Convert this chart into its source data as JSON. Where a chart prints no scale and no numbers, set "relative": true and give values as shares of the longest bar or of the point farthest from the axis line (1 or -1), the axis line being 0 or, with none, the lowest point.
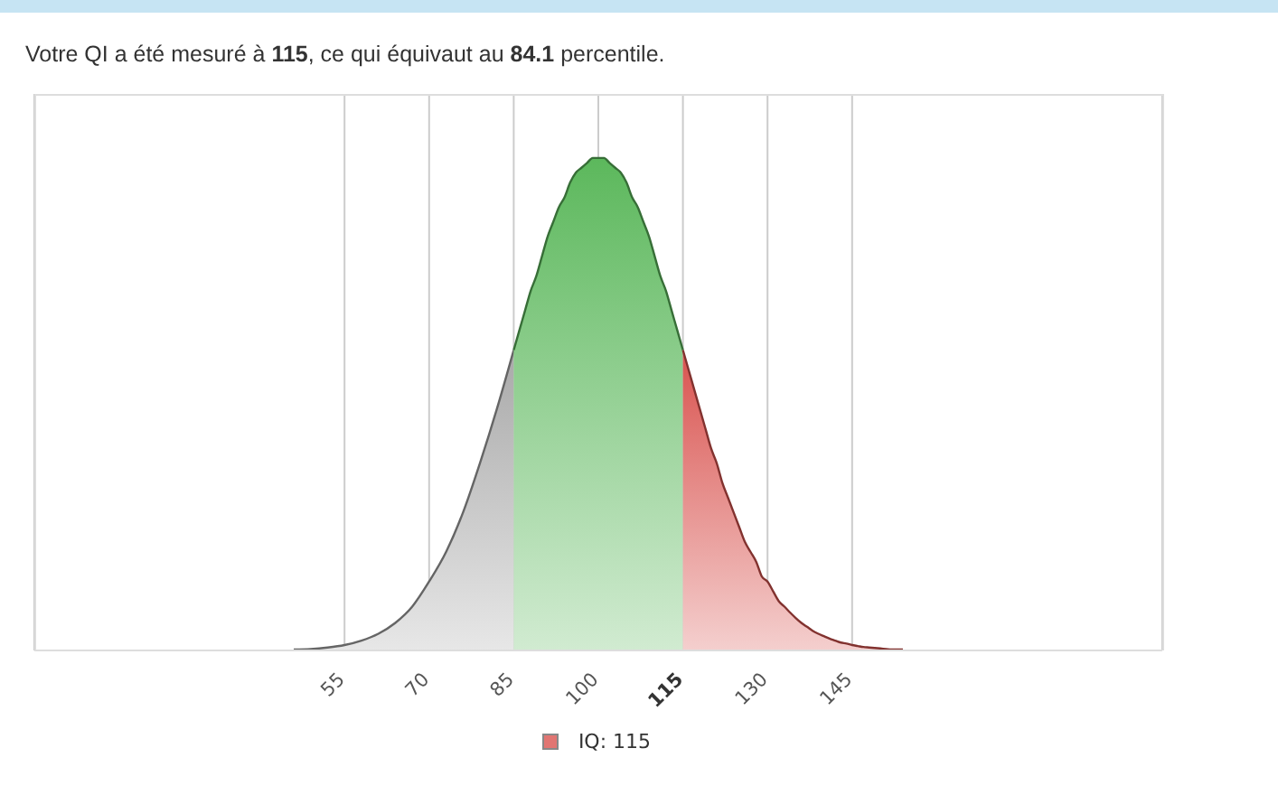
{
  "chart_data": {
    "type": "area",
    "title": "Votre QI a été mesuré à 115, ce qui équivaut au 84.1 percentile.",
    "relative": true,
    "xlim": [
      0,
      200
    ],
    "xticks": [
      55,
      70,
      85,
      100,
      115,
      130,
      145
    ],
    "tick_labels": "x",
    "grid": "x",
    "legend": "bottom",
    "series": [
      {
        "color": "#a9a9a9",
        "x": [
          46,
          49,
          52,
          55,
          58,
          61,
          64,
          67,
          70,
          73,
          76,
          79,
          82,
          85
        ],
        "values": [
          0.002,
          0.003,
          0.006,
          0.011,
          0.02,
          0.034,
          0.056,
          0.089,
          0.14,
          0.2,
          0.28,
          0.38,
          0.49,
          0.61
        ]
      },
      {
        "color": "#5cb85c",
        "x": [
          85,
          86,
          87,
          88,
          89,
          90,
          91,
          92,
          93,
          94,
          95,
          96,
          97,
          98,
          99,
          100,
          101,
          102,
          103,
          104,
          105,
          106,
          107,
          108,
          109,
          110,
          111,
          112,
          113,
          114,
          115
        ],
        "values": [
          0.61,
          0.65,
          0.69,
          0.73,
          0.76,
          0.8,
          0.84,
          0.87,
          0.9,
          0.92,
          0.95,
          0.97,
          0.98,
          0.99,
          1,
          1,
          1,
          0.99,
          0.98,
          0.97,
          0.95,
          0.92,
          0.9,
          0.87,
          0.84,
          0.8,
          0.76,
          0.73,
          0.69,
          0.65,
          0.61
        ]
      },
      {
        "name": "IQ: 115",
        "color": "#d9534f",
        "x": [
          115,
          116,
          117,
          118,
          119,
          120,
          121,
          122,
          123,
          124,
          125,
          126,
          127,
          128,
          129,
          130,
          131,
          132,
          133,
          134,
          135,
          136,
          137,
          138,
          139,
          140,
          141,
          142,
          143,
          144,
          145,
          146,
          147,
          148,
          149,
          150,
          151,
          152,
          153,
          154
        ],
        "values": [
          0.61,
          0.57,
          0.53,
          0.49,
          0.45,
          0.41,
          0.38,
          0.34,
          0.31,
          0.28,
          0.25,
          0.22,
          0.2,
          0.18,
          0.15,
          0.14,
          0.12,
          0.1,
          0.089,
          0.077,
          0.066,
          0.056,
          0.048,
          0.04,
          0.034,
          0.029,
          0.024,
          0.02,
          0.016,
          0.014,
          0.011,
          0.009,
          0.007,
          0.006,
          0.005,
          0.004,
          0.003,
          0.002,
          0.002,
          0.002
        ]
      }
    ]
  }
}
